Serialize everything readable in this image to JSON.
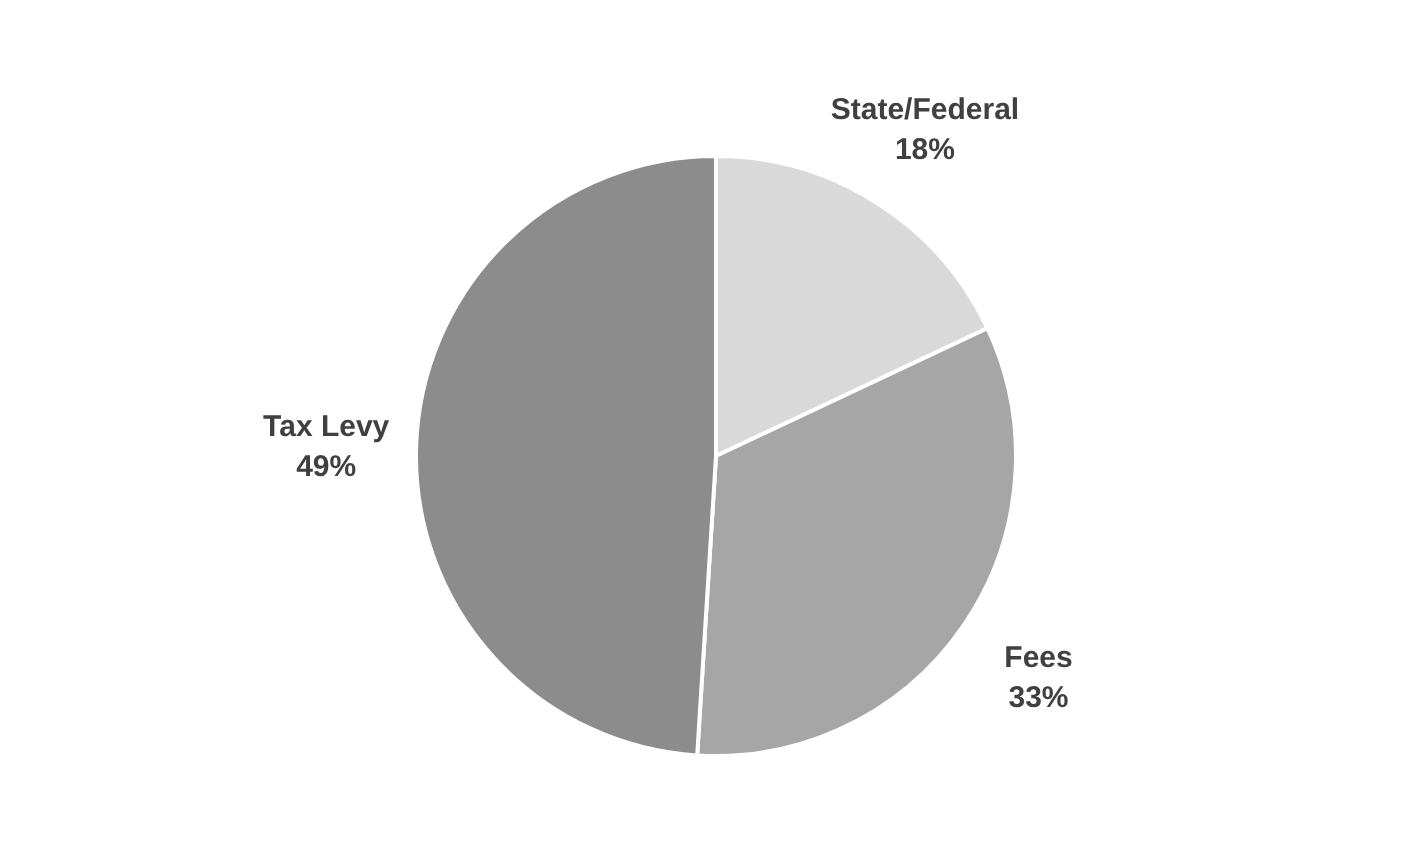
{
  "chart_data": {
    "type": "pie",
    "categories": [
      "State/Federal",
      "Fees",
      "Tax Levy"
    ],
    "values": [
      18,
      33,
      49
    ],
    "value_labels": [
      "18%",
      "33%",
      "49%"
    ],
    "colors": [
      "#d9d9d9",
      "#a6a6a6",
      "#8c8c8c"
    ],
    "legend": false
  }
}
